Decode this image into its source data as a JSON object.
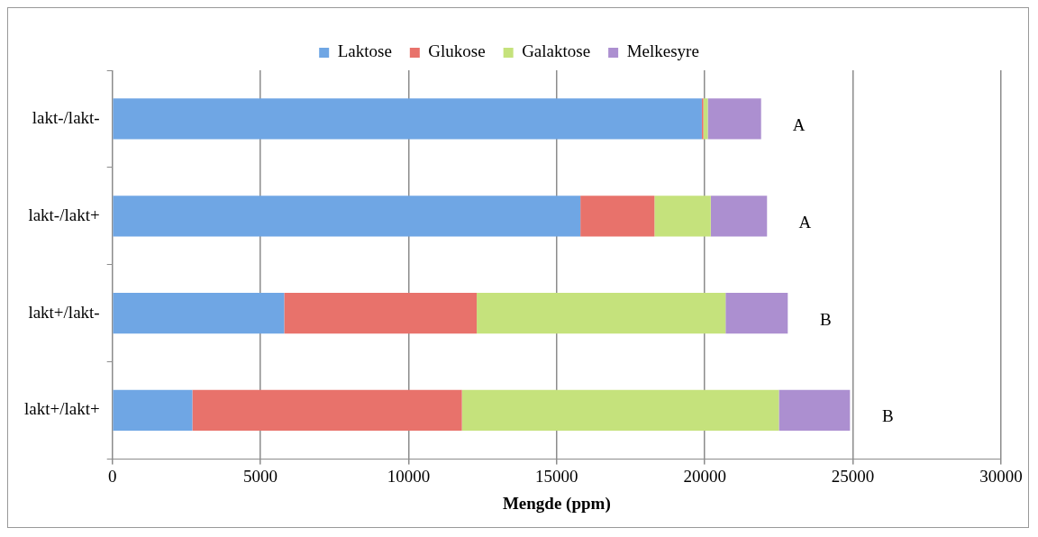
{
  "chart_data": {
    "type": "bar",
    "orientation": "horizontal",
    "stacked": true,
    "xlabel": "Mengde (ppm)",
    "categories": [
      "lakt-/lakt-",
      "lakt-/lakt+",
      "lakt+/lakt-",
      "lakt+/lakt+"
    ],
    "series": [
      {
        "name": "Laktose",
        "color": "#6fa6e4",
        "values": [
          19900,
          15800,
          5800,
          2700
        ]
      },
      {
        "name": "Glukose",
        "color": "#e8726b",
        "values": [
          50,
          2500,
          6500,
          9100
        ]
      },
      {
        "name": "Galaktose",
        "color": "#c5e27c",
        "values": [
          150,
          1900,
          8400,
          10700
        ]
      },
      {
        "name": "Melkesyre",
        "color": "#ac8fd0",
        "values": [
          1800,
          1900,
          2100,
          2400
        ]
      }
    ],
    "xlim": [
      0,
      30000
    ],
    "xticks": [
      0,
      5000,
      10000,
      15000,
      20000,
      25000,
      30000
    ],
    "grid": "x",
    "legend": "top",
    "annotations": [
      "A",
      "A",
      "B",
      "B"
    ]
  }
}
